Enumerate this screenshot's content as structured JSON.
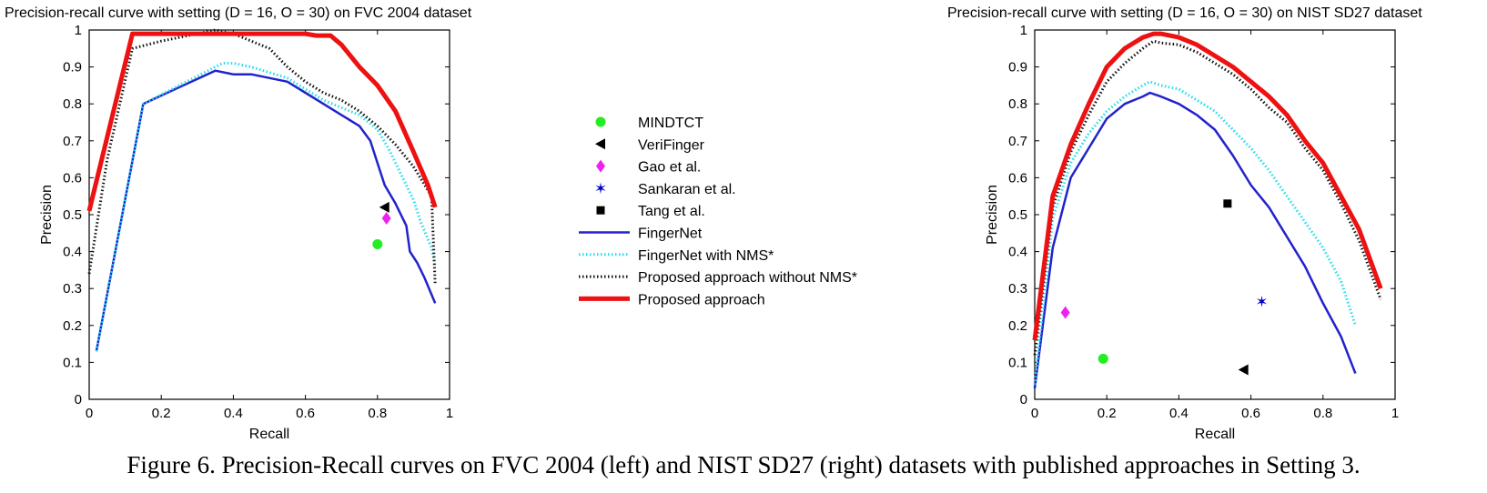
{
  "caption": "Figure 6. Precision-Recall curves on FVC 2004 (left) and NIST SD27 (right) datasets with published approaches in Setting 3.",
  "legend": [
    {
      "label": "MINDTCT",
      "kind": "marker",
      "marker": "circle",
      "color": "#22ee22"
    },
    {
      "label": "VeriFinger",
      "kind": "marker",
      "marker": "triangle-left",
      "color": "#000000"
    },
    {
      "label": "Gao et al.",
      "kind": "marker",
      "marker": "diamond",
      "color": "#ee22ee"
    },
    {
      "label": "Sankaran et al.",
      "kind": "marker",
      "marker": "star",
      "color": "#0000cc"
    },
    {
      "label": "Tang et al.",
      "kind": "marker",
      "marker": "square",
      "color": "#000000"
    },
    {
      "label": "FingerNet",
      "kind": "line",
      "style": "solid",
      "color": "#2222cc",
      "width": 2.5
    },
    {
      "label": "FingerNet with NMS*",
      "kind": "line",
      "style": "dotted",
      "color": "#22ddee",
      "width": 3
    },
    {
      "label": "Proposed approach without NMS*",
      "kind": "line",
      "style": "dotted",
      "color": "#111111",
      "width": 3
    },
    {
      "label": "Proposed approach",
      "kind": "line",
      "style": "solid",
      "color": "#ee1111",
      "width": 5
    }
  ],
  "chart_data": [
    {
      "type": "line",
      "title": "Precision-recall curve with setting (D = 16, O = 30) on FVC 2004 dataset",
      "xlabel": "Recall",
      "ylabel": "Precision",
      "xlim": [
        0,
        1
      ],
      "ylim": [
        0,
        1
      ],
      "xticks": [
        "0",
        "0.2",
        "0.4",
        "0.6",
        "0.8",
        "1"
      ],
      "yticks": [
        "0",
        "0.1",
        "0.2",
        "0.3",
        "0.4",
        "0.5",
        "0.6",
        "0.7",
        "0.8",
        "0.9",
        "1"
      ],
      "series": [
        {
          "name": "FingerNet",
          "points": [
            [
              0.02,
              0.13
            ],
            [
              0.15,
              0.8
            ],
            [
              0.25,
              0.845
            ],
            [
              0.35,
              0.89
            ],
            [
              0.4,
              0.88
            ],
            [
              0.45,
              0.88
            ],
            [
              0.55,
              0.86
            ],
            [
              0.6,
              0.83
            ],
            [
              0.65,
              0.8
            ],
            [
              0.7,
              0.77
            ],
            [
              0.75,
              0.74
            ],
            [
              0.78,
              0.7
            ],
            [
              0.8,
              0.64
            ],
            [
              0.82,
              0.58
            ],
            [
              0.85,
              0.53
            ],
            [
              0.88,
              0.47
            ],
            [
              0.89,
              0.4
            ],
            [
              0.91,
              0.37
            ],
            [
              0.93,
              0.33
            ],
            [
              0.96,
              0.26
            ]
          ]
        },
        {
          "name": "FingerNet with NMS*",
          "points": [
            [
              0.02,
              0.13
            ],
            [
              0.15,
              0.8
            ],
            [
              0.25,
              0.85
            ],
            [
              0.35,
              0.9
            ],
            [
              0.37,
              0.91
            ],
            [
              0.4,
              0.91
            ],
            [
              0.45,
              0.9
            ],
            [
              0.55,
              0.87
            ],
            [
              0.6,
              0.84
            ],
            [
              0.65,
              0.81
            ],
            [
              0.7,
              0.79
            ],
            [
              0.75,
              0.77
            ],
            [
              0.8,
              0.73
            ],
            [
              0.83,
              0.68
            ],
            [
              0.86,
              0.62
            ],
            [
              0.89,
              0.56
            ],
            [
              0.9,
              0.54
            ],
            [
              0.92,
              0.48
            ],
            [
              0.95,
              0.41
            ],
            [
              0.96,
              0.36
            ]
          ]
        },
        {
          "name": "Proposed approach without NMS*",
          "points": [
            [
              0,
              0.34
            ],
            [
              0.05,
              0.65
            ],
            [
              0.12,
              0.95
            ],
            [
              0.2,
              0.97
            ],
            [
              0.3,
              0.99
            ],
            [
              0.35,
              1.0
            ],
            [
              0.4,
              0.99
            ],
            [
              0.45,
              0.97
            ],
            [
              0.5,
              0.95
            ],
            [
              0.55,
              0.9
            ],
            [
              0.6,
              0.86
            ],
            [
              0.65,
              0.83
            ],
            [
              0.7,
              0.81
            ],
            [
              0.75,
              0.78
            ],
            [
              0.8,
              0.74
            ],
            [
              0.85,
              0.69
            ],
            [
              0.9,
              0.63
            ],
            [
              0.95,
              0.55
            ],
            [
              0.96,
              0.31
            ]
          ]
        },
        {
          "name": "Proposed approach",
          "points": [
            [
              0,
              0.51
            ],
            [
              0.12,
              0.99
            ],
            [
              0.2,
              0.99
            ],
            [
              0.3,
              0.99
            ],
            [
              0.4,
              0.99
            ],
            [
              0.5,
              0.99
            ],
            [
              0.55,
              0.99
            ],
            [
              0.6,
              0.99
            ],
            [
              0.63,
              0.985
            ],
            [
              0.67,
              0.985
            ],
            [
              0.7,
              0.96
            ],
            [
              0.75,
              0.9
            ],
            [
              0.8,
              0.85
            ],
            [
              0.85,
              0.78
            ],
            [
              0.9,
              0.67
            ],
            [
              0.94,
              0.58
            ],
            [
              0.96,
              0.52
            ]
          ]
        }
      ],
      "markers": [
        {
          "name": "MINDTCT",
          "x": 0.8,
          "y": 0.42
        },
        {
          "name": "VeriFinger",
          "x": 0.82,
          "y": 0.52
        },
        {
          "name": "Gao et al.",
          "x": 0.825,
          "y": 0.49
        }
      ]
    },
    {
      "type": "line",
      "title": "Precision-recall curve with setting (D = 16, O = 30) on NIST SD27 dataset",
      "xlabel": "Recall",
      "ylabel": "Precision",
      "xlim": [
        0,
        1
      ],
      "ylim": [
        0,
        1
      ],
      "xticks": [
        "0",
        "0.2",
        "0.4",
        "0.6",
        "0.8",
        "1"
      ],
      "yticks": [
        "0",
        "0.1",
        "0.2",
        "0.3",
        "0.4",
        "0.5",
        "0.6",
        "0.7",
        "0.8",
        "0.9",
        "1"
      ],
      "series": [
        {
          "name": "FingerNet",
          "points": [
            [
              0,
              0.03
            ],
            [
              0.05,
              0.41
            ],
            [
              0.1,
              0.6
            ],
            [
              0.15,
              0.68
            ],
            [
              0.2,
              0.76
            ],
            [
              0.25,
              0.8
            ],
            [
              0.3,
              0.82
            ],
            [
              0.32,
              0.83
            ],
            [
              0.35,
              0.82
            ],
            [
              0.4,
              0.8
            ],
            [
              0.45,
              0.77
            ],
            [
              0.5,
              0.73
            ],
            [
              0.55,
              0.66
            ],
            [
              0.6,
              0.58
            ],
            [
              0.65,
              0.52
            ],
            [
              0.7,
              0.44
            ],
            [
              0.75,
              0.36
            ],
            [
              0.8,
              0.26
            ],
            [
              0.85,
              0.17
            ],
            [
              0.89,
              0.07
            ]
          ]
        },
        {
          "name": "FingerNet with NMS*",
          "points": [
            [
              0,
              0.04
            ],
            [
              0.05,
              0.49
            ],
            [
              0.1,
              0.64
            ],
            [
              0.15,
              0.72
            ],
            [
              0.2,
              0.78
            ],
            [
              0.25,
              0.82
            ],
            [
              0.3,
              0.85
            ],
            [
              0.32,
              0.86
            ],
            [
              0.35,
              0.85
            ],
            [
              0.4,
              0.84
            ],
            [
              0.45,
              0.81
            ],
            [
              0.5,
              0.78
            ],
            [
              0.55,
              0.73
            ],
            [
              0.6,
              0.68
            ],
            [
              0.65,
              0.62
            ],
            [
              0.7,
              0.55
            ],
            [
              0.75,
              0.48
            ],
            [
              0.8,
              0.41
            ],
            [
              0.85,
              0.32
            ],
            [
              0.89,
              0.2
            ]
          ]
        },
        {
          "name": "Proposed approach without NMS*",
          "points": [
            [
              0,
              0.12
            ],
            [
              0.05,
              0.52
            ],
            [
              0.1,
              0.67
            ],
            [
              0.15,
              0.77
            ],
            [
              0.2,
              0.86
            ],
            [
              0.25,
              0.91
            ],
            [
              0.3,
              0.95
            ],
            [
              0.33,
              0.97
            ],
            [
              0.35,
              0.965
            ],
            [
              0.4,
              0.96
            ],
            [
              0.45,
              0.94
            ],
            [
              0.5,
              0.91
            ],
            [
              0.55,
              0.88
            ],
            [
              0.6,
              0.84
            ],
            [
              0.65,
              0.79
            ],
            [
              0.7,
              0.75
            ],
            [
              0.75,
              0.68
            ],
            [
              0.8,
              0.62
            ],
            [
              0.85,
              0.53
            ],
            [
              0.9,
              0.43
            ],
            [
              0.96,
              0.27
            ]
          ]
        },
        {
          "name": "Proposed approach",
          "points": [
            [
              0,
              0.16
            ],
            [
              0.05,
              0.55
            ],
            [
              0.1,
              0.69
            ],
            [
              0.15,
              0.8
            ],
            [
              0.2,
              0.9
            ],
            [
              0.25,
              0.95
            ],
            [
              0.3,
              0.98
            ],
            [
              0.33,
              0.99
            ],
            [
              0.35,
              0.99
            ],
            [
              0.4,
              0.98
            ],
            [
              0.45,
              0.96
            ],
            [
              0.5,
              0.93
            ],
            [
              0.55,
              0.9
            ],
            [
              0.6,
              0.86
            ],
            [
              0.65,
              0.82
            ],
            [
              0.7,
              0.77
            ],
            [
              0.75,
              0.7
            ],
            [
              0.8,
              0.64
            ],
            [
              0.85,
              0.55
            ],
            [
              0.9,
              0.46
            ],
            [
              0.96,
              0.3
            ]
          ]
        }
      ],
      "markers": [
        {
          "name": "MINDTCT",
          "x": 0.19,
          "y": 0.11
        },
        {
          "name": "VeriFinger",
          "x": 0.58,
          "y": 0.08
        },
        {
          "name": "Gao et al.",
          "x": 0.085,
          "y": 0.235
        },
        {
          "name": "Sankaran et al.",
          "x": 0.63,
          "y": 0.265
        },
        {
          "name": "Tang et al.",
          "x": 0.535,
          "y": 0.53
        }
      ]
    }
  ]
}
